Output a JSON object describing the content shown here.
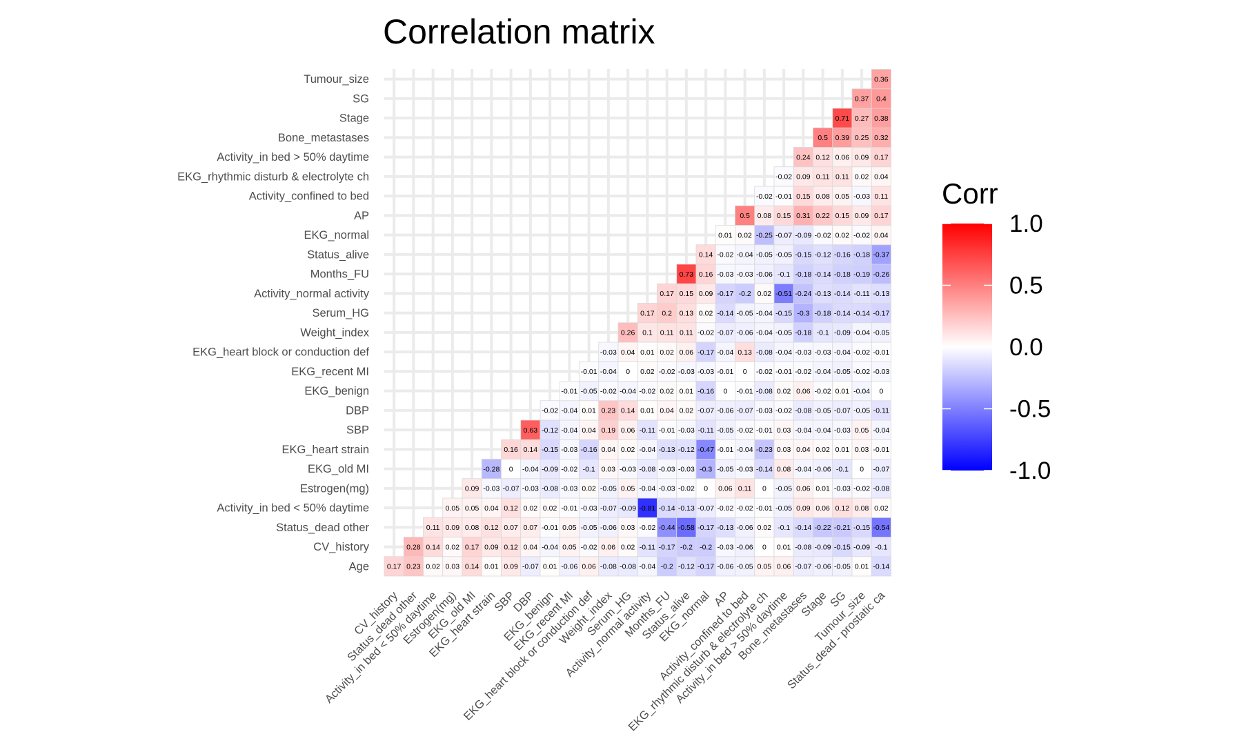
{
  "chart_data": {
    "type": "heatmap",
    "title": "Correlation matrix",
    "xlabel": "",
    "ylabel": "",
    "grid": true,
    "legend_placement": "right",
    "colors": {
      "low": "#0000FF",
      "mid": "#FFFFFF",
      "high": "#FF0000",
      "grid": "#ebebeb",
      "cell_border": "#d9d9d9"
    },
    "legend": {
      "title": "Corr",
      "ticks": [
        1.0,
        0.5,
        0.0,
        -0.5,
        -1.0
      ],
      "tick_labels": [
        "1.0",
        "0.5",
        "0.0",
        "-0.5",
        "-1.0"
      ],
      "range": [
        -1,
        1
      ]
    },
    "x_labels": [
      "CV_history",
      "Status_dead other",
      "Activity_in bed < 50% daytime",
      "Estrogen(mg)",
      "EKG_old MI",
      "EKG_heart strain",
      "SBP",
      "DBP",
      "EKG_benign",
      "EKG_recent MI",
      "EKG_heart block or conduction def",
      "Weight_index",
      "Serum_HG",
      "Activity_normal activity",
      "Months_FU",
      "Status_alive",
      "EKG_normal",
      "AP",
      "Activity_confined to bed",
      "EKG_rhythmic disturb & electrolyte ch",
      "Activity_in bed > 50% daytime",
      "Bone_metastases",
      "Stage",
      "SG",
      "Tumour_size",
      "Status_dead - prostatic ca"
    ],
    "y_labels": [
      "Age",
      "CV_history",
      "Status_dead other",
      "Activity_in bed < 50% daytime",
      "Estrogen(mg)",
      "EKG_old MI",
      "EKG_heart strain",
      "SBP",
      "DBP",
      "EKG_benign",
      "EKG_recent MI",
      "EKG_heart block or conduction def",
      "Weight_index",
      "Serum_HG",
      "Activity_normal activity",
      "Months_FU",
      "Status_alive",
      "EKG_normal",
      "AP",
      "Activity_confined to bed",
      "EKG_rhythmic disturb & electrolyte ch",
      "Activity_in bed > 50% daytime",
      "Bone_metastases",
      "Stage",
      "SG",
      "Tumour_size"
    ],
    "rows": [
      [
        "0.17",
        "0.23",
        "0.02",
        "0.03",
        "0.14",
        "0.01",
        "0.09",
        "-0.07",
        "0.01",
        "-0.06",
        "0.06",
        "-0.08",
        "-0.08",
        "-0.04",
        "-0.2",
        "-0.12",
        "-0.17",
        "-0.06",
        "-0.05",
        "0.05",
        "0.06",
        "-0.07",
        "-0.06",
        "-0.05",
        "0.01",
        "-0.14"
      ],
      [
        "0.28",
        "0.14",
        "0.02",
        "0.17",
        "0.09",
        "0.12",
        "0.04",
        "-0.04",
        "0.05",
        "-0.02",
        "0.06",
        "0.02",
        "-0.11",
        "-0.17",
        "-0.2",
        "-0.2",
        "-0.03",
        "-0.06",
        "0",
        "0.01",
        "-0.08",
        "-0.09",
        "-0.15",
        "-0.09",
        "-0.1"
      ],
      [
        "0.11",
        "0.09",
        "0.08",
        "0.12",
        "0.07",
        "0.07",
        "-0.01",
        "0.05",
        "-0.05",
        "-0.06",
        "0.03",
        "-0.02",
        "-0.44",
        "-0.58",
        "-0.17",
        "-0.13",
        "-0.06",
        "0.02",
        "-0.1",
        "-0.14",
        "-0.22",
        "-0.21",
        "-0.15",
        "-0.54"
      ],
      [
        "0.05",
        "0.05",
        "0.04",
        "0.12",
        "0.02",
        "0.02",
        "-0.01",
        "-0.03",
        "-0.07",
        "-0.09",
        "-0.81",
        "-0.14",
        "-0.13",
        "-0.07",
        "-0.02",
        "-0.02",
        "-0.01",
        "-0.05",
        "0.09",
        "0.06",
        "0.12",
        "0.08",
        "0.02"
      ],
      [
        "0.09",
        "-0.03",
        "-0.07",
        "-0.03",
        "-0.08",
        "-0.03",
        "0.02",
        "-0.05",
        "0.05",
        "-0.04",
        "-0.03",
        "-0.02",
        "0",
        "0.06",
        "0.11",
        "0",
        "-0.05",
        "0.06",
        "0.01",
        "-0.03",
        "-0.02",
        "-0.08"
      ],
      [
        "-0.28",
        "0",
        "-0.04",
        "-0.09",
        "-0.02",
        "-0.1",
        "0.03",
        "-0.03",
        "-0.08",
        "-0.03",
        "-0.03",
        "-0.3",
        "-0.05",
        "-0.03",
        "-0.14",
        "0.08",
        "-0.04",
        "-0.06",
        "-0.1",
        "0",
        "-0.07"
      ],
      [
        "0.16",
        "0.14",
        "-0.15",
        "-0.03",
        "-0.16",
        "0.04",
        "0.02",
        "-0.04",
        "-0.13",
        "-0.12",
        "-0.47",
        "-0.01",
        "-0.04",
        "-0.23",
        "0.03",
        "0.04",
        "0.02",
        "0.01",
        "0.03",
        "-0.01"
      ],
      [
        "0.63",
        "-0.12",
        "-0.04",
        "0.04",
        "0.19",
        "0.06",
        "-0.11",
        "-0.01",
        "-0.03",
        "-0.11",
        "-0.05",
        "-0.02",
        "-0.01",
        "0.03",
        "-0.04",
        "-0.04",
        "-0.03",
        "0.05",
        "-0.04"
      ],
      [
        "-0.02",
        "-0.04",
        "0.01",
        "0.23",
        "0.14",
        "0.01",
        "0.04",
        "0.02",
        "-0.07",
        "-0.06",
        "-0.07",
        "-0.03",
        "-0.02",
        "-0.08",
        "-0.05",
        "-0.07",
        "-0.05",
        "-0.11"
      ],
      [
        "-0.01",
        "-0.05",
        "-0.02",
        "-0.04",
        "-0.02",
        "0.02",
        "0.01",
        "-0.16",
        "0",
        "-0.01",
        "-0.08",
        "0.02",
        "0.06",
        "-0.02",
        "0.01",
        "-0.04",
        "0"
      ],
      [
        "-0.01",
        "-0.04",
        "0",
        "0.02",
        "-0.02",
        "-0.03",
        "-0.03",
        "-0.01",
        "0",
        "-0.02",
        "-0.01",
        "-0.02",
        "-0.04",
        "-0.05",
        "-0.02",
        "-0.03"
      ],
      [
        "-0.03",
        "0.04",
        "0.01",
        "0.02",
        "0.06",
        "-0.17",
        "-0.04",
        "0.13",
        "-0.08",
        "-0.04",
        "-0.03",
        "-0.03",
        "-0.04",
        "-0.02",
        "-0.01"
      ],
      [
        "0.26",
        "0.1",
        "0.11",
        "0.11",
        "-0.02",
        "-0.07",
        "-0.06",
        "-0.04",
        "-0.05",
        "-0.18",
        "-0.1",
        "-0.09",
        "-0.04",
        "-0.05"
      ],
      [
        "0.17",
        "0.2",
        "0.13",
        "0.02",
        "-0.14",
        "-0.05",
        "-0.04",
        "-0.15",
        "-0.3",
        "-0.18",
        "-0.14",
        "-0.14",
        "-0.17"
      ],
      [
        "0.17",
        "0.15",
        "0.09",
        "-0.17",
        "-0.2",
        "0.02",
        "-0.51",
        "-0.24",
        "-0.13",
        "-0.14",
        "-0.11",
        "-0.13"
      ],
      [
        "0.73",
        "0.16",
        "-0.03",
        "-0.03",
        "-0.06",
        "-0.1",
        "-0.18",
        "-0.14",
        "-0.18",
        "-0.19",
        "-0.26"
      ],
      [
        "0.14",
        "-0.02",
        "-0.04",
        "-0.05",
        "-0.05",
        "-0.15",
        "-0.12",
        "-0.16",
        "-0.18",
        "-0.37"
      ],
      [
        "0.01",
        "0.02",
        "-0.25",
        "-0.07",
        "-0.09",
        "-0.02",
        "0.02",
        "-0.02",
        "0.04"
      ],
      [
        "0.5",
        "0.08",
        "0.15",
        "0.31",
        "0.22",
        "0.15",
        "0.09",
        "0.17"
      ],
      [
        "-0.02",
        "-0.01",
        "0.15",
        "0.08",
        "0.05",
        "-0.03",
        "0.11"
      ],
      [
        "-0.02",
        "0.09",
        "0.11",
        "0.11",
        "0.02",
        "0.04"
      ],
      [
        "0.24",
        "0.12",
        "0.06",
        "0.09",
        "0.17"
      ],
      [
        "0.5",
        "0.39",
        "0.25",
        "0.32"
      ],
      [
        "0.71",
        "0.27",
        "0.38"
      ],
      [
        "0.37",
        "0.4"
      ],
      [
        "0.36"
      ]
    ]
  }
}
